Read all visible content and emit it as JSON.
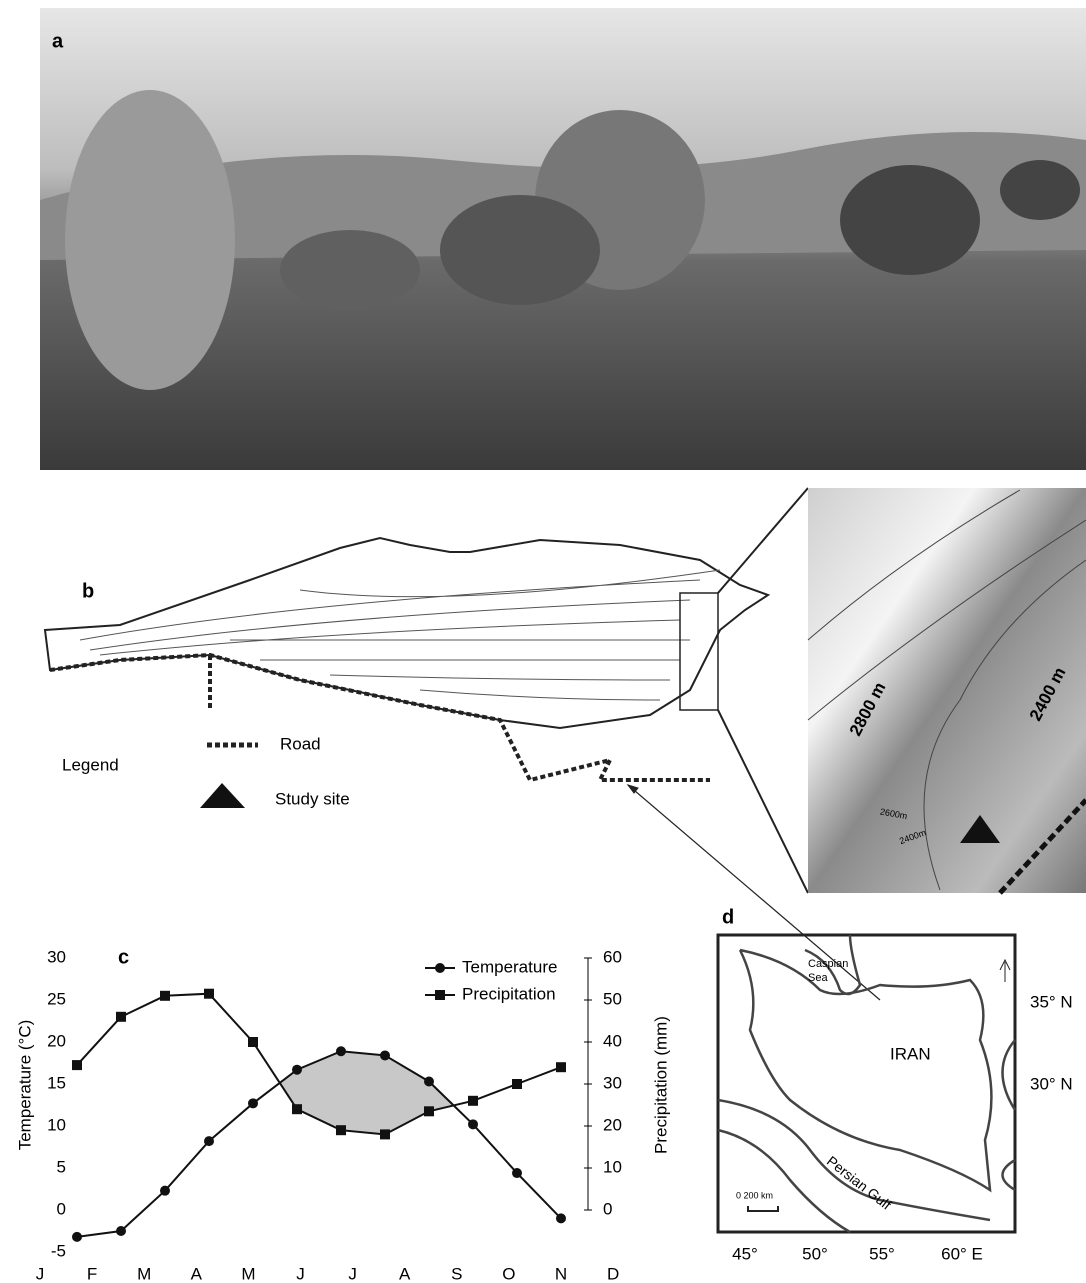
{
  "panels": {
    "a": "a",
    "b": "b",
    "c": "c",
    "d": "d"
  },
  "map_b": {
    "legend_title": "Legend",
    "legend": [
      "Road",
      "Study site"
    ],
    "contour_labels": [
      "2800 m",
      "2400 m",
      "2600m",
      "2400m"
    ]
  },
  "map_d": {
    "sea": [
      "Caspian",
      "Sea"
    ],
    "country": "IRAN",
    "gulf": "Persian Gulf",
    "scale": "0  200 km",
    "xticks": [
      "45°",
      "50°",
      "55°",
      "60° E"
    ],
    "yticks": [
      "35° N",
      "30° N"
    ]
  },
  "chart_data": {
    "type": "line",
    "categories": [
      "J",
      "F",
      "M",
      "A",
      "M",
      "J",
      "J",
      "A",
      "S",
      "O",
      "N",
      "D"
    ],
    "ylabel": "Temperature (°C)",
    "y2label": "Precipitation (mm)",
    "ylim": [
      -5,
      30
    ],
    "yticks": [
      -5,
      0,
      5,
      10,
      15,
      20,
      25,
      30
    ],
    "y2lim": [
      -10,
      60
    ],
    "y2ticks": [
      0,
      10,
      20,
      30,
      40,
      50,
      60
    ],
    "fill_between": "#c8c8c8",
    "series": [
      {
        "name": "Temperature",
        "color": "#111111",
        "marker": "circle",
        "values": [
          -3.2,
          -2.5,
          2.3,
          8.2,
          12.7,
          16.7,
          18.9,
          18.4,
          15.3,
          10.2,
          4.4,
          -1.0
        ]
      },
      {
        "name": "Precipitation",
        "color": "#111111",
        "marker": "square",
        "axis": "y2",
        "values": [
          34.5,
          46,
          51,
          51.5,
          40,
          24,
          19,
          18,
          23.5,
          26,
          30,
          34
        ]
      }
    ]
  }
}
